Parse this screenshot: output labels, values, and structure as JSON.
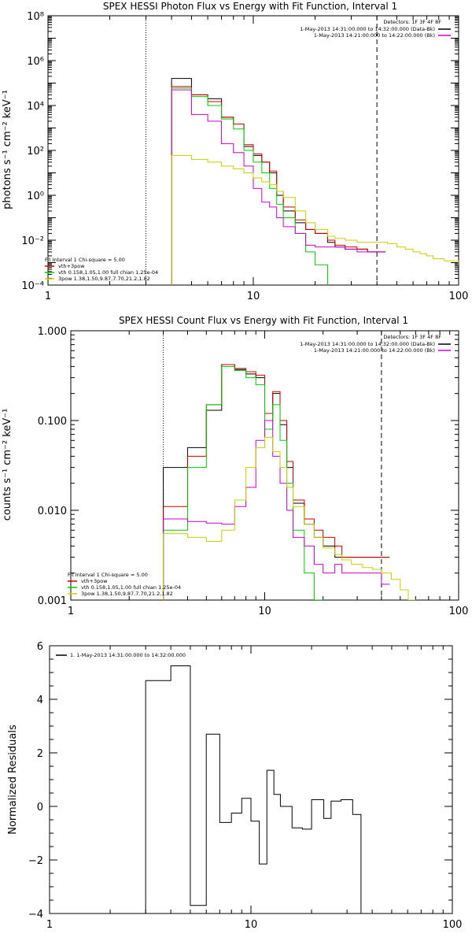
{
  "chart_data": [
    {
      "type": "line",
      "title": "SPEX HESSI Photon Flux vs Energy with Fit Function, Interval 1",
      "ylabel": "photons s⁻¹ cm⁻² keV⁻¹",
      "xlabel": "",
      "xscale": "log",
      "yscale": "log",
      "xlim": [
        1,
        100
      ],
      "ylim": [
        0.0001,
        100000000
      ],
      "xticks": [
        "1",
        "10",
        "100"
      ],
      "yticks": [
        "10⁻⁴",
        "10⁻²",
        "10⁰",
        "10²",
        "10⁴",
        "10⁶",
        "10⁸"
      ],
      "vlines": [
        {
          "x": 3,
          "style": "dotted"
        },
        {
          "x": 40,
          "style": "dashed"
        }
      ],
      "legend_top": {
        "header": "Detectors: 1F 3F 4F 8F",
        "entries": [
          {
            "text": "1-May-2013 14:31:00.000 to 14:32:00.000 (Data-Bk)",
            "color": "#000000"
          },
          {
            "text": "1-May-2013 14:21:00.000 to 14:22:00.000 (Bk)",
            "color": "#cc00cc"
          }
        ]
      },
      "legend_bottom": {
        "header": "Fit Interval 1   Chi-square = 5.00",
        "entries": [
          {
            "text": "vth+3pow",
            "color": "#cc0000"
          },
          {
            "text": "vth 0.158,1.05,1.00  full chian 1.25e-04",
            "color": "#00cc00"
          },
          {
            "text": "3pow 1.38,1.50,9.87,7.70,21.2,1.82",
            "color": "#cccc00"
          }
        ]
      },
      "series": [
        {
          "color": "#000000",
          "points": [
            [
              3,
              0
            ],
            [
              4,
              160000
            ],
            [
              5,
              30000
            ],
            [
              6,
              20000
            ],
            [
              7,
              3000
            ],
            [
              8,
              1500
            ],
            [
              9,
              150
            ],
            [
              10,
              60
            ],
            [
              11,
              30
            ],
            [
              12,
              10
            ],
            [
              13,
              1
            ],
            [
              14,
              0.2
            ],
            [
              16,
              0.06
            ],
            [
              18,
              0.03
            ],
            [
              20,
              0.02
            ],
            [
              23,
              0.008
            ],
            [
              25,
              0.005
            ],
            [
              28,
              0.004
            ],
            [
              32,
              0.004
            ],
            [
              36,
              0.003
            ],
            [
              40,
              0.003
            ]
          ]
        },
        {
          "color": "#cc0000",
          "points": [
            [
              3,
              0
            ],
            [
              4,
              70000
            ],
            [
              5,
              30000
            ],
            [
              6,
              15000
            ],
            [
              7,
              3000
            ],
            [
              8,
              1500
            ],
            [
              9,
              180
            ],
            [
              10,
              70
            ],
            [
              11,
              30
            ],
            [
              12,
              12
            ],
            [
              13,
              1.5
            ],
            [
              14,
              0.3
            ],
            [
              16,
              0.08
            ],
            [
              18,
              0.03
            ],
            [
              20,
              0.02
            ],
            [
              23,
              0.01
            ],
            [
              25,
              0.006
            ],
            [
              28,
              0.005
            ],
            [
              32,
              0.004
            ],
            [
              36,
              0.003
            ],
            [
              40,
              0.003
            ]
          ]
        },
        {
          "color": "#00cc00",
          "points": [
            [
              3,
              0
            ],
            [
              4,
              60000
            ],
            [
              5,
              25000
            ],
            [
              6,
              10000
            ],
            [
              7,
              2500
            ],
            [
              8,
              900
            ],
            [
              9,
              100
            ],
            [
              10,
              30
            ],
            [
              11,
              10
            ],
            [
              12,
              2
            ],
            [
              13,
              0.4
            ],
            [
              14,
              0.1
            ],
            [
              16,
              0.02
            ],
            [
              18,
              0.003
            ],
            [
              20,
              0.0008
            ],
            [
              23,
              5e-05
            ]
          ]
        },
        {
          "color": "#cc00cc",
          "points": [
            [
              3,
              0
            ],
            [
              4,
              50000
            ],
            [
              5,
              4000
            ],
            [
              6,
              2000
            ],
            [
              7,
              200
            ],
            [
              8,
              80
            ],
            [
              9,
              20
            ],
            [
              10,
              2
            ],
            [
              11,
              0.5
            ],
            [
              12,
              0.3
            ],
            [
              13,
              0.1
            ],
            [
              14,
              0.04
            ],
            [
              16,
              0.02
            ],
            [
              18,
              0.006
            ],
            [
              20,
              0.005
            ],
            [
              23,
              0.005
            ],
            [
              25,
              0.005
            ],
            [
              28,
              0.004
            ],
            [
              32,
              0.003
            ],
            [
              36,
              0.003
            ],
            [
              40,
              0.003
            ]
          ]
        },
        {
          "color": "#cccc00",
          "points": [
            [
              3,
              0
            ],
            [
              4,
              60
            ],
            [
              5,
              40
            ],
            [
              6,
              30
            ],
            [
              7,
              20
            ],
            [
              8,
              15
            ],
            [
              9,
              10
            ],
            [
              10,
              6
            ],
            [
              11,
              4
            ],
            [
              12,
              3
            ],
            [
              13,
              1.5
            ],
            [
              14,
              0.8
            ],
            [
              16,
              0.2
            ],
            [
              18,
              0.06
            ],
            [
              20,
              0.03
            ],
            [
              23,
              0.015
            ],
            [
              25,
              0.012
            ],
            [
              28,
              0.01
            ],
            [
              32,
              0.008
            ],
            [
              36,
              0.008
            ],
            [
              40,
              0.008
            ],
            [
              45,
              0.007
            ],
            [
              50,
              0.005
            ],
            [
              55,
              0.004
            ],
            [
              60,
              0.003
            ],
            [
              65,
              0.0025
            ],
            [
              70,
              0.002
            ],
            [
              75,
              0.0015
            ],
            [
              85,
              0.0012
            ],
            [
              100,
              0.0008
            ]
          ]
        }
      ]
    },
    {
      "type": "line",
      "title": "SPEX HESSI Count Flux vs Energy with Fit Function, Interval 1",
      "ylabel": "counts s⁻¹ cm⁻² keV⁻¹",
      "xlabel": "",
      "xscale": "log",
      "yscale": "log",
      "xlim": [
        1,
        100
      ],
      "ylim": [
        0.001,
        1
      ],
      "xticks": [
        "1",
        "10",
        "100"
      ],
      "yticks": [
        "0.001",
        "0.010",
        "0.100",
        "1.000"
      ],
      "vlines": [
        {
          "x": 3,
          "style": "dotted"
        },
        {
          "x": 40,
          "style": "dashed"
        }
      ],
      "legend_top": {
        "header": "Detectors: 1F 3F 4F 8F",
        "entries": [
          {
            "text": "1-May-2013 14:31:00.000 to 14:32:00.000 (Data-Bk)",
            "color": "#000000"
          },
          {
            "text": "1-May-2013 14:21:00.000 to 14:22:00.000 (Bk)",
            "color": "#cc00cc"
          }
        ]
      },
      "legend_bottom": {
        "header": "Fit Interval 1   Chi-square = 5.00",
        "entries": [
          {
            "text": "vth+3pow",
            "color": "#cc0000"
          },
          {
            "text": "vth 0.158,1.05,1.00  full chian 1.25e-04",
            "color": "#00cc00"
          },
          {
            "text": "3pow 1.38,1.50,9.87,7.70,21.2,1.82",
            "color": "#cccc00"
          }
        ]
      },
      "series": [
        {
          "color": "#000000",
          "points": [
            [
              3,
              0.03
            ],
            [
              4,
              0.05
            ],
            [
              5,
              0.13
            ],
            [
              6,
              0.42
            ],
            [
              7,
              0.37
            ],
            [
              8,
              0.33
            ],
            [
              9,
              0.3
            ],
            [
              10,
              0.1
            ],
            [
              11,
              0.2
            ],
            [
              12,
              0.09
            ],
            [
              13,
              0.03
            ],
            [
              14,
              0.012
            ],
            [
              16,
              0.007
            ],
            [
              18,
              0.005
            ],
            [
              20,
              0.004
            ],
            [
              23,
              0.003
            ],
            [
              25,
              0.003
            ],
            [
              28,
              0.003
            ],
            [
              32,
              0.003
            ],
            [
              36,
              0.003
            ],
            [
              40,
              0.003
            ]
          ]
        },
        {
          "color": "#cc0000",
          "points": [
            [
              3,
              0.011
            ],
            [
              4,
              0.04
            ],
            [
              5,
              0.15
            ],
            [
              6,
              0.42
            ],
            [
              7,
              0.38
            ],
            [
              8,
              0.35
            ],
            [
              9,
              0.32
            ],
            [
              10,
              0.12
            ],
            [
              11,
              0.21
            ],
            [
              12,
              0.1
            ],
            [
              13,
              0.035
            ],
            [
              14,
              0.013
            ],
            [
              16,
              0.008
            ],
            [
              18,
              0.006
            ],
            [
              20,
              0.005
            ],
            [
              23,
              0.004
            ],
            [
              25,
              0.003
            ],
            [
              28,
              0.003
            ],
            [
              32,
              0.003
            ],
            [
              36,
              0.003
            ],
            [
              40,
              0.003
            ]
          ]
        },
        {
          "color": "#00cc00",
          "points": [
            [
              3,
              0.006
            ],
            [
              4,
              0.03
            ],
            [
              5,
              0.15
            ],
            [
              6,
              0.4
            ],
            [
              7,
              0.36
            ],
            [
              8,
              0.3
            ],
            [
              9,
              0.25
            ],
            [
              10,
              0.08
            ],
            [
              11,
              0.15
            ],
            [
              12,
              0.06
            ],
            [
              13,
              0.02
            ],
            [
              14,
              0.006
            ],
            [
              16,
              0.002
            ],
            [
              18,
              0.001
            ],
            [
              20,
              0.0005
            ]
          ]
        },
        {
          "color": "#cc00cc",
          "points": [
            [
              3,
              0.008
            ],
            [
              4,
              0.0075
            ],
            [
              5,
              0.0072
            ],
            [
              6,
              0.007
            ],
            [
              7,
              0.011
            ],
            [
              8,
              0.018
            ],
            [
              9,
              0.06
            ],
            [
              10,
              0.1
            ],
            [
              11,
              0.04
            ],
            [
              12,
              0.02
            ],
            [
              13,
              0.01
            ],
            [
              14,
              0.005
            ],
            [
              16,
              0.004
            ],
            [
              18,
              0.0025
            ],
            [
              20,
              0.002
            ],
            [
              23,
              0.0025
            ],
            [
              25,
              0.002
            ],
            [
              28,
              0.002
            ],
            [
              32,
              0.002
            ],
            [
              36,
              0.002
            ],
            [
              40,
              0.0015
            ]
          ]
        },
        {
          "color": "#cccc00",
          "points": [
            [
              3,
              0.0055
            ],
            [
              4,
              0.005
            ],
            [
              5,
              0.0045
            ],
            [
              6,
              0.006
            ],
            [
              7,
              0.013
            ],
            [
              8,
              0.03
            ],
            [
              9,
              0.05
            ],
            [
              10,
              0.065
            ],
            [
              11,
              0.045
            ],
            [
              12,
              0.03
            ],
            [
              13,
              0.018
            ],
            [
              14,
              0.011
            ],
            [
              16,
              0.007
            ],
            [
              18,
              0.005
            ],
            [
              20,
              0.0038
            ],
            [
              23,
              0.0032
            ],
            [
              25,
              0.0028
            ],
            [
              28,
              0.0025
            ],
            [
              32,
              0.0023
            ],
            [
              36,
              0.0022
            ],
            [
              40,
              0.002
            ],
            [
              45,
              0.0017
            ],
            [
              50,
              0.0013
            ],
            [
              55,
              0.001
            ],
            [
              60,
              0.0008
            ]
          ]
        }
      ]
    },
    {
      "type": "line",
      "title": "",
      "ylabel": "Normalized Residuals",
      "xlabel": "",
      "xscale": "log",
      "yscale": "linear",
      "xlim": [
        1,
        100
      ],
      "ylim": [
        -4,
        6
      ],
      "xticks": [
        "1",
        "10",
        "100"
      ],
      "yticks": [
        "−4",
        "−2",
        "0",
        "2",
        "4",
        "6"
      ],
      "legend": "1. 1-May-2013 14:31:00.000 to 14:32:00.000",
      "series": [
        {
          "color": "#000000",
          "points": [
            [
              3,
              4.7
            ],
            [
              4,
              5.25
            ],
            [
              5,
              -3.7
            ],
            [
              6,
              2.7
            ],
            [
              7,
              -0.6
            ],
            [
              8,
              -0.25
            ],
            [
              9,
              0.3
            ],
            [
              10,
              -0.55
            ],
            [
              11,
              -2.15
            ],
            [
              12,
              1.35
            ],
            [
              13,
              0.45
            ],
            [
              14,
              0.0
            ],
            [
              16,
              -0.8
            ],
            [
              18,
              -0.85
            ],
            [
              20,
              0.25
            ],
            [
              23,
              -0.45
            ],
            [
              25,
              0.2
            ],
            [
              28,
              0.25
            ],
            [
              32,
              -0.3
            ]
          ]
        }
      ]
    }
  ]
}
